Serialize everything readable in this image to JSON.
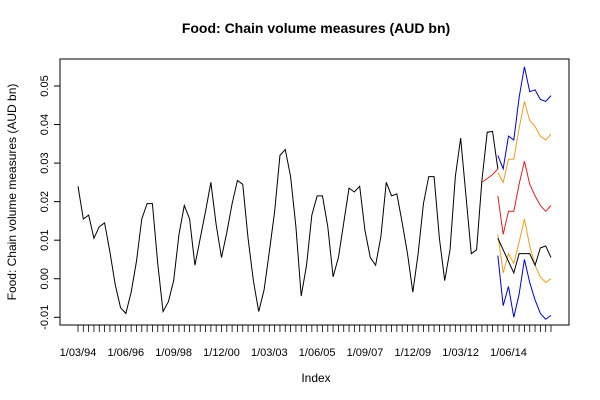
{
  "chart_data": {
    "type": "line",
    "title": "Food: Chain volume measures (AUD bn)",
    "xlabel": "Index",
    "ylabel": "Food: Chain volume measures (AUD bn)",
    "xlim": [
      1,
      90
    ],
    "ylim": [
      -0.012,
      0.057
    ],
    "x_tick_labels": [
      {
        "index": 1,
        "label": "1/03/94"
      },
      {
        "index": 10,
        "label": "1/06/96"
      },
      {
        "index": 19,
        "label": "1/09/98"
      },
      {
        "index": 28,
        "label": "1/12/00"
      },
      {
        "index": 37,
        "label": "1/03/03"
      },
      {
        "index": 46,
        "label": "1/06/05"
      },
      {
        "index": 55,
        "label": "1/09/07"
      },
      {
        "index": 64,
        "label": "1/12/09"
      },
      {
        "index": 73,
        "label": "1/03/12"
      },
      {
        "index": 82,
        "label": "1/06/14"
      }
    ],
    "y_ticks": [
      -0.01,
      0.0,
      0.01,
      0.02,
      0.03,
      0.04,
      0.05
    ],
    "y_tick_labels": [
      "-0.01",
      "0.00",
      "0.01",
      "0.02",
      "0.03",
      "0.04",
      "0.05"
    ],
    "grid": false,
    "series": [
      {
        "color": "#000000",
        "x": [
          1,
          2,
          3,
          4,
          5,
          6,
          7,
          8,
          9,
          10,
          11,
          12,
          13,
          14,
          15,
          16,
          17,
          18,
          19,
          20,
          21,
          22,
          23,
          24,
          25,
          26,
          27,
          28,
          29,
          30,
          31,
          32,
          33,
          34,
          35,
          36,
          37,
          38,
          39,
          40,
          41,
          42,
          43,
          44,
          45,
          46,
          47,
          48,
          49,
          50,
          51,
          52,
          53,
          54,
          55,
          56,
          57,
          58,
          59,
          60,
          61,
          62,
          63,
          64,
          65,
          66,
          67,
          68,
          69,
          70,
          71,
          72,
          73,
          74,
          75,
          76,
          77
        ],
        "y": [
          0.024,
          0.0155,
          0.0165,
          0.0105,
          0.0135,
          0.0145,
          0.007,
          -0.0015,
          -0.0075,
          -0.009,
          -0.0035,
          0.0045,
          0.0155,
          0.0195,
          0.0195,
          0.004,
          -0.0085,
          -0.006,
          -0.0005,
          0.0115,
          0.019,
          0.0155,
          0.0035,
          0.0105,
          0.0175,
          0.025,
          0.014,
          0.0055,
          0.012,
          0.0195,
          0.0255,
          0.0245,
          0.0105,
          -0.0005,
          -0.0085,
          -0.003,
          0.007,
          0.0175,
          0.032,
          0.0335,
          0.0265,
          0.0135,
          -0.0045,
          0.0035,
          0.0165,
          0.0215,
          0.0215,
          0.0135,
          0.0005,
          0.0055,
          0.0145,
          0.0235,
          0.0225,
          0.024,
          0.0125,
          0.0055,
          0.0035,
          0.011,
          0.025,
          0.0215,
          0.022,
          0.0145,
          0.0065,
          -0.0035,
          0.0065,
          0.0195,
          0.0265,
          0.0265,
          0.0105,
          -0.0005,
          0.0075,
          0.0265,
          0.0365,
          0.0215,
          0.0065,
          0.0075,
          0.0255
        ]
      },
      {
        "color": "#000000",
        "x": [
          77,
          78,
          79,
          80
        ],
        "y": [
          0.0255,
          0.038,
          0.0382,
          0.0285
        ]
      },
      {
        "color": "#0000cc",
        "x": [
          80,
          81,
          82,
          83,
          84,
          85,
          86,
          87,
          88,
          89,
          90
        ],
        "y": [
          0.032,
          0.0285,
          0.037,
          0.036,
          0.047,
          0.055,
          0.0485,
          0.049,
          0.0465,
          0.046,
          0.0475
        ]
      },
      {
        "color": "#e6a020",
        "x": [
          80,
          81,
          82,
          83,
          84,
          85,
          86,
          87,
          88,
          89,
          90
        ],
        "y": [
          0.0275,
          0.025,
          0.031,
          0.031,
          0.039,
          0.046,
          0.041,
          0.0395,
          0.037,
          0.036,
          0.0375
        ]
      },
      {
        "color": "#dd2222",
        "x": [
          80,
          81,
          82,
          83,
          84,
          85,
          86,
          87,
          88,
          89,
          90
        ],
        "y": [
          0.0215,
          0.0115,
          0.0175,
          0.0175,
          0.0245,
          0.0305,
          0.0245,
          0.0215,
          0.019,
          0.0175,
          0.019
        ]
      },
      {
        "color": "#e6a020",
        "x": [
          80,
          81,
          82,
          83,
          84,
          85,
          86,
          87,
          88,
          89,
          90
        ],
        "y": [
          0.0115,
          0.0015,
          0.0065,
          0.004,
          0.0095,
          0.0155,
          0.0085,
          0.0035,
          0.0005,
          -0.001,
          0.0
        ]
      },
      {
        "color": "#0000cc",
        "x": [
          80,
          81,
          82,
          83,
          84,
          85,
          86,
          87,
          88,
          89,
          90
        ],
        "y": [
          0.006,
          -0.007,
          -0.002,
          -0.01,
          -0.004,
          0.005,
          -0.001,
          -0.0055,
          -0.009,
          -0.0105,
          -0.0095
        ]
      },
      {
        "color": "#000000",
        "x": [
          80,
          81,
          82,
          83,
          84,
          85,
          86,
          87,
          88,
          89,
          90
        ],
        "y": [
          0.0105,
          0.0075,
          0.0045,
          0.0015,
          0.0065,
          0.0065,
          0.0065,
          0.0035,
          0.008,
          0.0085,
          0.0055
        ]
      },
      {
        "color": "#dd2222",
        "x": [
          77,
          78,
          79,
          80
        ],
        "y": [
          0.025,
          0.026,
          0.027,
          0.0285
        ]
      }
    ]
  }
}
